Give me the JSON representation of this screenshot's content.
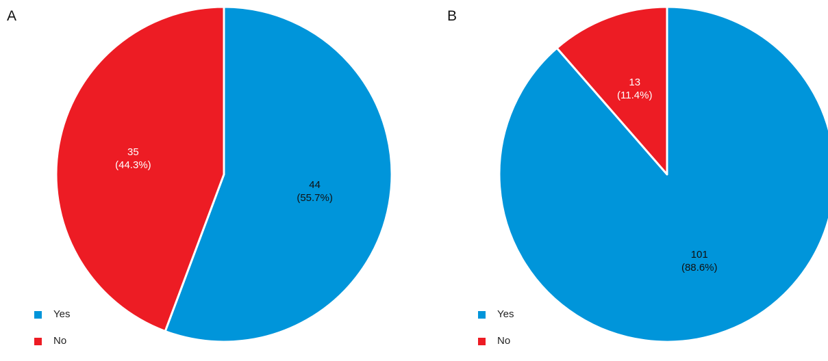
{
  "colors": {
    "yes": "#0095DA",
    "no": "#ED1C24"
  },
  "chart_data": [
    {
      "type": "pie",
      "panel_label": "A",
      "title": "",
      "legend": {
        "position": "bottom-left",
        "entries": [
          "Yes",
          "No"
        ]
      },
      "slices": [
        {
          "name": "Yes",
          "value": 44,
          "label": "44",
          "percent_label": "(55.7%)",
          "color": "#0095DA",
          "text_color": "#111111"
        },
        {
          "name": "No",
          "value": 35,
          "label": "35",
          "percent_label": "(44.3%)",
          "color": "#ED1C24",
          "text_color": "#ffffff"
        }
      ]
    },
    {
      "type": "pie",
      "panel_label": "B",
      "title": "",
      "legend": {
        "position": "bottom-left",
        "entries": [
          "Yes",
          "No"
        ]
      },
      "slices": [
        {
          "name": "Yes",
          "value": 101,
          "label": "101",
          "percent_label": "(88.6%)",
          "color": "#0095DA",
          "text_color": "#111111"
        },
        {
          "name": "No",
          "value": 13,
          "label": "13",
          "percent_label": "(11.4%)",
          "color": "#ED1C24",
          "text_color": "#ffffff"
        }
      ]
    }
  ]
}
